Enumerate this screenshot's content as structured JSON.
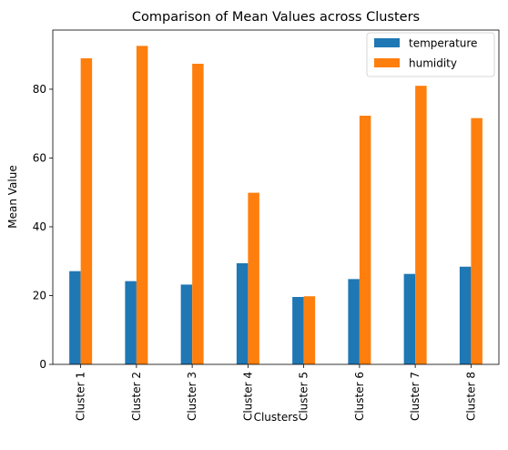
{
  "chart_data": {
    "type": "bar",
    "title": "Comparison of Mean Values across Clusters",
    "xlabel": "Clusters",
    "ylabel": "Mean Value",
    "categories": [
      "Cluster 1",
      "Cluster 2",
      "Cluster 3",
      "Cluster 4",
      "Cluster 5",
      "Cluster 6",
      "Cluster 7",
      "Cluster 8"
    ],
    "series": [
      {
        "name": "temperature",
        "color": "#1f77b4",
        "values": [
          27.1,
          24.2,
          23.2,
          29.4,
          19.6,
          24.8,
          26.3,
          28.4
        ]
      },
      {
        "name": "humidity",
        "color": "#ff7f0e",
        "values": [
          89.0,
          92.6,
          87.4,
          49.9,
          19.8,
          72.3,
          81.0,
          71.6
        ]
      }
    ],
    "ylim": [
      0,
      97.2
    ],
    "yticks": [
      0,
      20,
      40,
      60,
      80
    ],
    "grid": false,
    "legend_position": "upper right",
    "x_tick_rotation": "vertical"
  }
}
